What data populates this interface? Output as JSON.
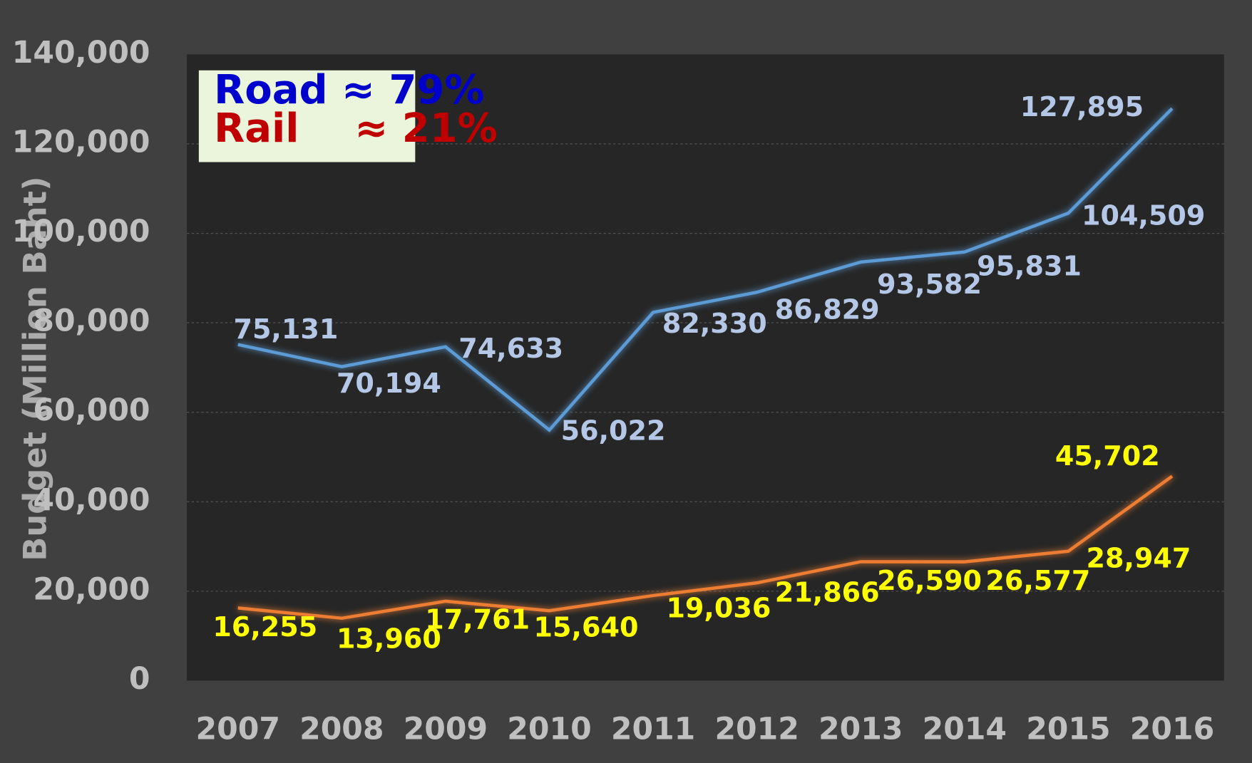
{
  "chart_data": {
    "type": "line",
    "y_label": "Budget (Million Baht)",
    "annotations": [
      {
        "text": "Road ≈ 79%",
        "color": "#0000cc"
      },
      {
        "text": "Rail    ≈ 21%",
        "color": "#c00000"
      }
    ],
    "categories": [
      "2007",
      "2008",
      "2009",
      "2010",
      "2011",
      "2012",
      "2013",
      "2014",
      "2015",
      "2016"
    ],
    "series": [
      {
        "color": "#5b9bd5",
        "label_color": "#b4c7e7",
        "values": [
          75131,
          70194,
          74633,
          56022,
          82330,
          86829,
          93582,
          95831,
          104509,
          127895
        ],
        "value_labels": [
          "75,131",
          "70,194",
          "74,633",
          "56,022",
          "82,330",
          "86,829",
          "93,582",
          "95,831",
          "104,509",
          "127,895"
        ]
      },
      {
        "color": "#ed7d31",
        "label_color": "#ffff00",
        "values": [
          16255,
          13960,
          17761,
          15640,
          19036,
          21866,
          26590,
          26577,
          28947,
          45702
        ],
        "value_labels": [
          "16,255",
          "13,960",
          "17,761",
          "15,640",
          "19,036",
          "21,866",
          "26,590",
          "26,577",
          "28,947",
          "45,702"
        ]
      }
    ],
    "ylim": [
      0,
      140000
    ],
    "yticks": [
      0,
      {
        "value": 20000,
        "label": "20,000"
      },
      {
        "value": 40000,
        "label": "40,000"
      },
      {
        "value": 60000,
        "label": "60,000"
      },
      {
        "value": 80000,
        "label": "80,000"
      },
      {
        "value": 100000,
        "label": "100,000"
      },
      {
        "value": 120000,
        "label": "120,000"
      },
      {
        "value": 140000,
        "label": "140,000"
      }
    ],
    "grid": true
  }
}
